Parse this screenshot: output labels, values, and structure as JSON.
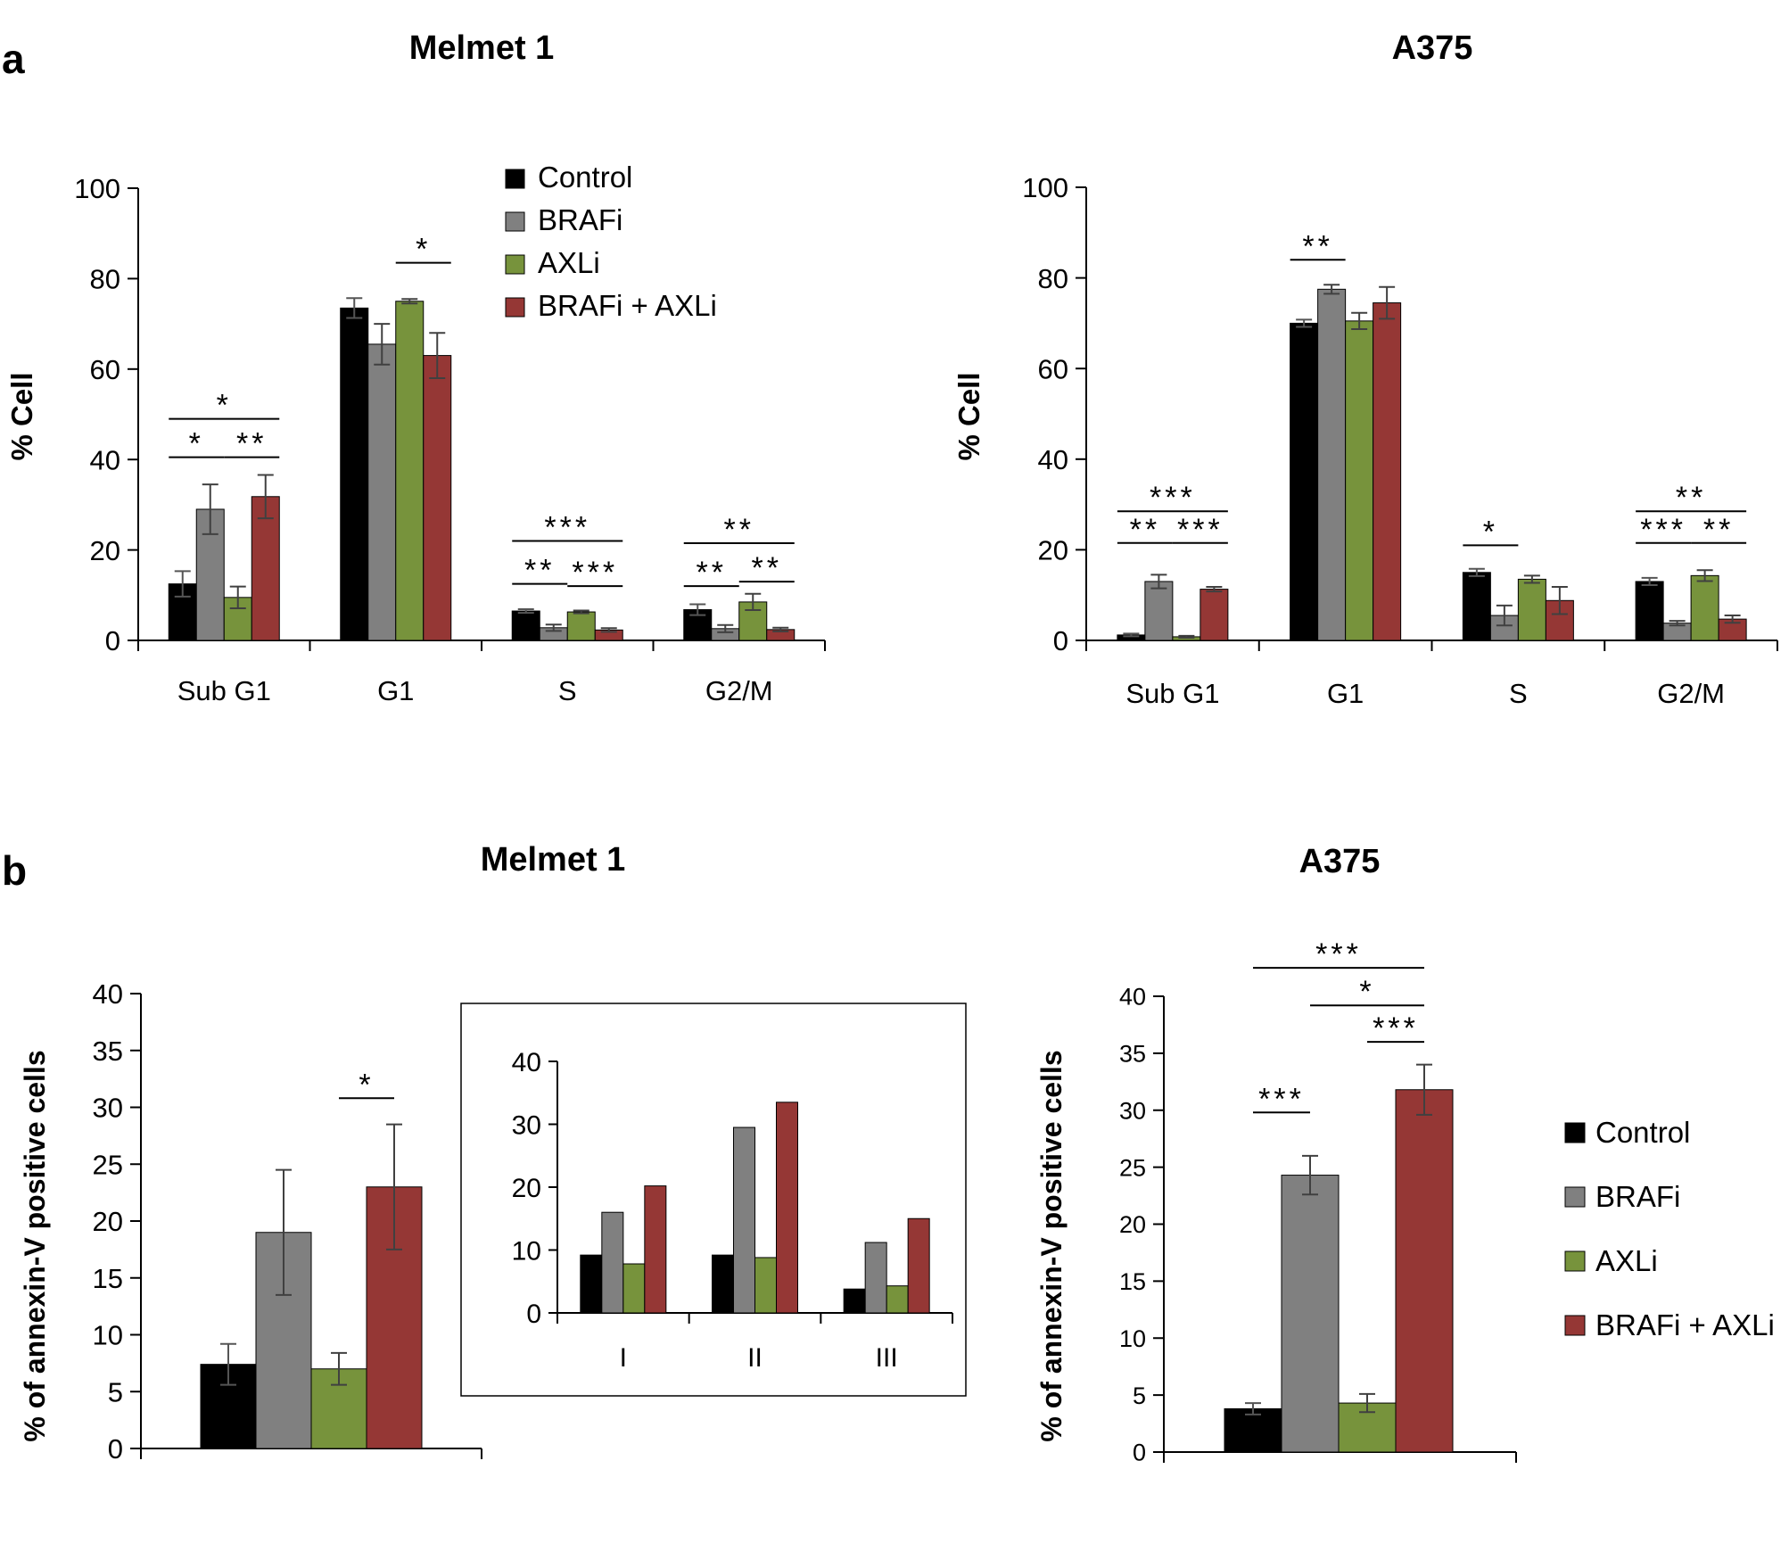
{
  "colors": {
    "Control": "#000000",
    "BRAFi": "#808080",
    "AXLi": "#77933c",
    "BRAFi + AXLi": "#953735",
    "axis": "#000000",
    "error_bar": "#404040"
  },
  "panel_labels": {
    "a": "a",
    "b": "b"
  },
  "chart_data": [
    {
      "id": "a_melmet",
      "type": "bar",
      "title": "Melmet 1",
      "xlabel": "",
      "ylabel": "% Cell",
      "ylim": [
        0,
        100
      ],
      "yticks": [
        0,
        20,
        40,
        60,
        80,
        100
      ],
      "categories": [
        "Sub G1",
        "G1",
        "S",
        "G2/M"
      ],
      "legend": "top-center",
      "legend_entries": [
        "Control",
        "BRAFi",
        "AXLi",
        "BRAFi + AXLi"
      ],
      "series": [
        {
          "name": "Control",
          "values": [
            12.5,
            73.5,
            6.5,
            6.8
          ],
          "errors": [
            2.8,
            2.2,
            0.4,
            1.2
          ]
        },
        {
          "name": "BRAFi",
          "values": [
            29.0,
            65.5,
            2.8,
            2.6
          ],
          "errors": [
            5.5,
            4.5,
            0.7,
            0.8
          ]
        },
        {
          "name": "AXLi",
          "values": [
            9.5,
            75.0,
            6.3,
            8.5
          ],
          "errors": [
            2.4,
            0.5,
            0.3,
            1.8
          ]
        },
        {
          "name": "BRAFi + AXLi",
          "values": [
            31.8,
            63.0,
            2.3,
            2.4
          ],
          "errors": [
            4.8,
            5.0,
            0.4,
            0.4
          ]
        }
      ],
      "annotations": [
        {
          "text": "*",
          "cat": 0,
          "from": 0,
          "to": 1,
          "level": 40.5
        },
        {
          "text": "**",
          "cat": 0,
          "from": 2,
          "to": 3,
          "level": 40.5
        },
        {
          "text": "*",
          "cat": 0,
          "from": 0,
          "to": 3,
          "level": 49.0
        },
        {
          "text": "*",
          "cat": 1,
          "from": 2,
          "to": 3,
          "level": 83.5
        },
        {
          "text": "**",
          "cat": 2,
          "from": 0,
          "to": 1,
          "level": 12.5
        },
        {
          "text": "***",
          "cat": 2,
          "from": 2,
          "to": 3,
          "level": 12.0
        },
        {
          "text": "***",
          "cat": 2,
          "from": 0,
          "to": 3,
          "level": 22.0
        },
        {
          "text": "**",
          "cat": 3,
          "from": 0,
          "to": 1,
          "level": 12.0
        },
        {
          "text": "**",
          "cat": 3,
          "from": 2,
          "to": 3,
          "level": 13.0
        },
        {
          "text": "**",
          "cat": 3,
          "from": 0,
          "to": 3,
          "level": 21.5
        }
      ]
    },
    {
      "id": "a_a375",
      "type": "bar",
      "title": "A375",
      "xlabel": "",
      "ylabel": "% Cell",
      "ylim": [
        0,
        100
      ],
      "yticks": [
        0,
        20,
        40,
        60,
        80,
        100
      ],
      "categories": [
        "Sub G1",
        "G1",
        "S",
        "G2/M"
      ],
      "series": [
        {
          "name": "Control",
          "values": [
            1.2,
            70.0,
            15.0,
            13.0
          ],
          "errors": [
            0.3,
            0.8,
            0.8,
            0.8
          ]
        },
        {
          "name": "BRAFi",
          "values": [
            13.0,
            77.5,
            5.5,
            3.8
          ],
          "errors": [
            1.5,
            1.0,
            2.2,
            0.5
          ]
        },
        {
          "name": "AXLi",
          "values": [
            0.8,
            70.5,
            13.5,
            14.3
          ],
          "errors": [
            0.2,
            1.8,
            0.8,
            1.2
          ]
        },
        {
          "name": "BRAFi + AXLi",
          "values": [
            11.3,
            74.5,
            8.8,
            4.7
          ],
          "errors": [
            0.5,
            3.5,
            3.0,
            0.8
          ]
        }
      ],
      "annotations": [
        {
          "text": "**",
          "cat": 0,
          "from": 0,
          "to": 1,
          "level": 21.5
        },
        {
          "text": "***",
          "cat": 0,
          "from": 2,
          "to": 3,
          "level": 21.5
        },
        {
          "text": "***",
          "cat": 0,
          "from": 0,
          "to": 3,
          "level": 28.5
        },
        {
          "text": "**",
          "cat": 1,
          "from": 0,
          "to": 1,
          "level": 84.0
        },
        {
          "text": "*",
          "cat": 2,
          "from": 0,
          "to": 1,
          "level": 21.0
        },
        {
          "text": "***",
          "cat": 3,
          "from": 0,
          "to": 1,
          "level": 21.5
        },
        {
          "text": "**",
          "cat": 3,
          "from": 2,
          "to": 3,
          "level": 21.5
        },
        {
          "text": "**",
          "cat": 3,
          "from": 0,
          "to": 3,
          "level": 28.5
        }
      ]
    },
    {
      "id": "b_melmet",
      "type": "bar",
      "title": "Melmet 1",
      "xlabel": "",
      "ylabel": "% of annexin-V positive cells",
      "ylim": [
        0,
        40
      ],
      "yticks": [
        0,
        5,
        10,
        15,
        20,
        25,
        30,
        35,
        40
      ],
      "categories": [
        ""
      ],
      "series": [
        {
          "name": "Control",
          "values": [
            7.4
          ],
          "errors": [
            1.8
          ]
        },
        {
          "name": "BRAFi",
          "values": [
            19.0
          ],
          "errors": [
            5.5
          ]
        },
        {
          "name": "AXLi",
          "values": [
            7.0
          ],
          "errors": [
            1.4
          ]
        },
        {
          "name": "BRAFi + AXLi",
          "values": [
            23.0
          ],
          "errors": [
            5.5
          ]
        }
      ],
      "annotations": [
        {
          "text": "*",
          "cat": 0,
          "from": 2.5,
          "to": 3.5,
          "level": 30.8
        }
      ]
    },
    {
      "id": "b_melmet_inset",
      "type": "bar",
      "title": "",
      "xlabel": "",
      "ylabel": "",
      "ylim": [
        0,
        40
      ],
      "yticks": [
        0,
        10,
        20,
        30,
        40
      ],
      "categories": [
        "I",
        "II",
        "III"
      ],
      "series": [
        {
          "name": "Control",
          "values": [
            9.2,
            9.2,
            3.8
          ]
        },
        {
          "name": "BRAFi",
          "values": [
            16.0,
            29.5,
            11.2
          ]
        },
        {
          "name": "AXLi",
          "values": [
            7.8,
            8.8,
            4.3
          ]
        },
        {
          "name": "BRAFi + AXLi",
          "values": [
            20.2,
            33.5,
            15.0
          ]
        }
      ]
    },
    {
      "id": "b_a375",
      "type": "bar",
      "title": "A375",
      "xlabel": "",
      "ylabel": "% of annexin-V positive cells",
      "ylim": [
        0,
        40
      ],
      "yticks": [
        0,
        5,
        10,
        15,
        20,
        25,
        30,
        35,
        40
      ],
      "categories": [
        ""
      ],
      "legend": "right",
      "legend_entries": [
        "Control",
        "BRAFi",
        "AXLi",
        "BRAFi + AXLi"
      ],
      "series": [
        {
          "name": "Control",
          "values": [
            3.8
          ],
          "errors": [
            0.5
          ]
        },
        {
          "name": "BRAFi",
          "values": [
            24.3
          ],
          "errors": [
            1.7
          ]
        },
        {
          "name": "AXLi",
          "values": [
            4.3
          ],
          "errors": [
            0.8
          ]
        },
        {
          "name": "BRAFi + AXLi",
          "values": [
            31.8
          ],
          "errors": [
            2.2
          ]
        }
      ],
      "annotations": [
        {
          "text": "***",
          "cat": 0,
          "from": 0.5,
          "to": 1.5,
          "level": 29.8
        },
        {
          "text": "***",
          "cat": 0,
          "from": 2.5,
          "to": 3.5,
          "level": 36.0
        },
        {
          "text": "*",
          "cat": 0,
          "from": 1.5,
          "to": 3.5,
          "level": 39.2
        },
        {
          "text": "***",
          "cat": 0,
          "from": 0.5,
          "to": 3.5,
          "level": 42.5
        }
      ]
    }
  ]
}
